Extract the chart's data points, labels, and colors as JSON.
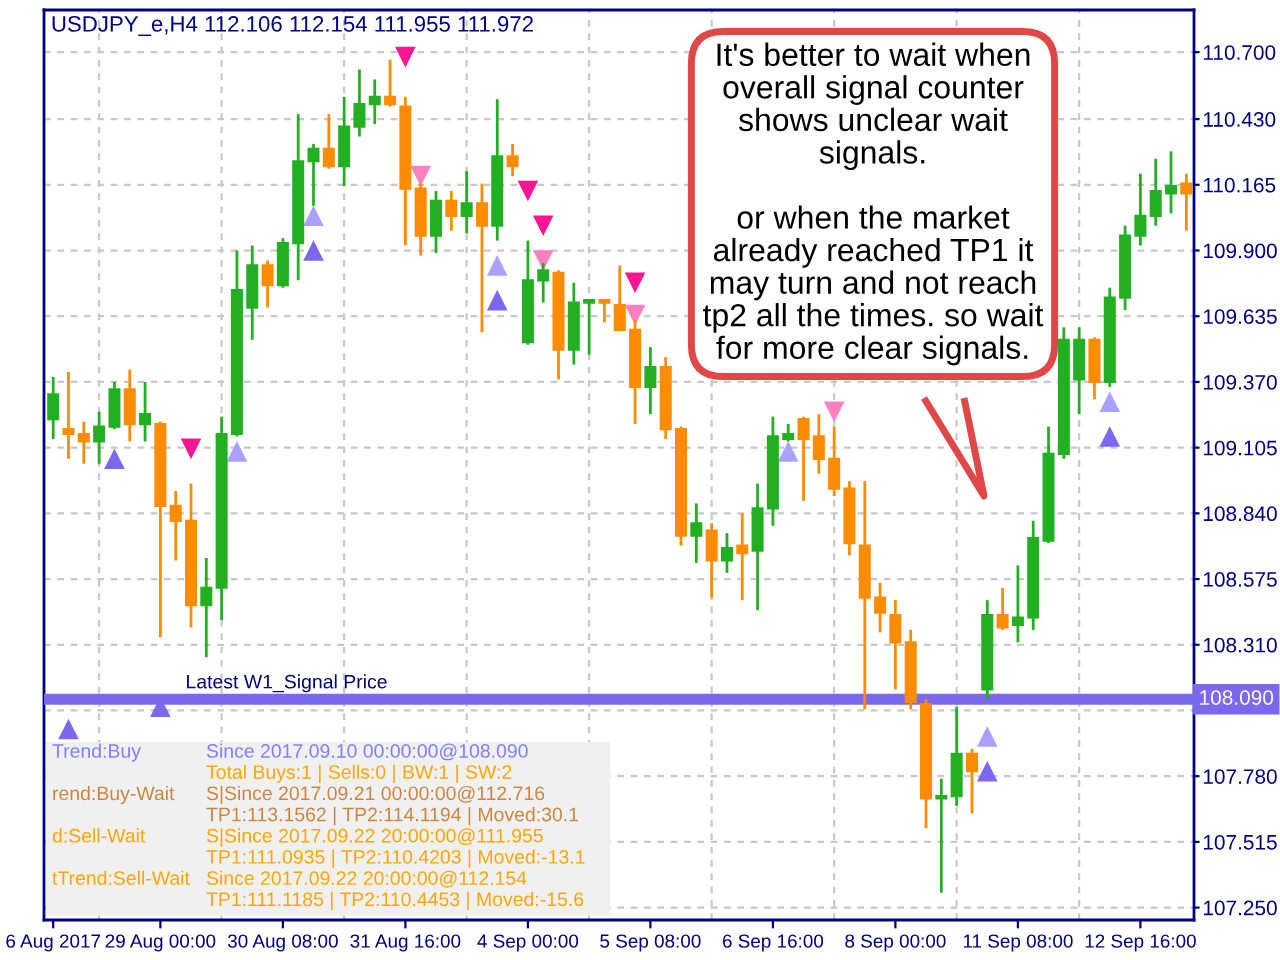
{
  "chart_data": {
    "type": "candlestick",
    "title": "USDJPY_e,H4 112.106 112.154 111.955 111.972",
    "categories": [
      "6 Aug 2017",
      null,
      null,
      null,
      null,
      null,
      null,
      "29 Aug 00:00",
      null,
      null,
      null,
      null,
      null,
      null,
      null,
      "30 Aug 08:00",
      null,
      null,
      null,
      null,
      null,
      null,
      null,
      "31 Aug 16:00",
      null,
      null,
      null,
      null,
      null,
      null,
      null,
      "4 Sep 00:00",
      null,
      null,
      null,
      null,
      null,
      null,
      null,
      "5 Sep 08:00",
      null,
      null,
      null,
      null,
      null,
      null,
      null,
      "6 Sep 16:00",
      null,
      null,
      null,
      null,
      null,
      null,
      null,
      "8 Sep 00:00",
      null,
      null,
      null,
      null,
      null,
      null,
      null,
      "11 Sep 08:00",
      null,
      null,
      null,
      null,
      null,
      null,
      null,
      "12 Sep 16:00",
      null,
      null,
      null
    ],
    "ohlc": [
      [
        109.22,
        109.39,
        109.14,
        109.32
      ],
      [
        109.18,
        109.41,
        109.06,
        109.16
      ],
      [
        109.16,
        109.21,
        109.04,
        109.13
      ],
      [
        109.13,
        109.25,
        109.04,
        109.19
      ],
      [
        109.19,
        109.37,
        109.18,
        109.34
      ],
      [
        109.34,
        109.42,
        109.13,
        109.2
      ],
      [
        109.2,
        109.37,
        109.13,
        109.24
      ],
      [
        109.2,
        109.21,
        108.34,
        108.87
      ],
      [
        108.87,
        108.93,
        108.65,
        108.81
      ],
      [
        108.81,
        108.96,
        108.38,
        108.47
      ],
      [
        108.47,
        108.66,
        108.26,
        108.54
      ],
      [
        108.54,
        109.23,
        108.41,
        109.16
      ],
      [
        109.16,
        109.9,
        109.15,
        109.74
      ],
      [
        109.67,
        109.92,
        109.54,
        109.84
      ],
      [
        109.84,
        109.86,
        109.67,
        109.76
      ],
      [
        109.76,
        109.95,
        109.75,
        109.93
      ],
      [
        109.93,
        110.45,
        109.78,
        110.26
      ],
      [
        110.26,
        110.33,
        110.08,
        110.31
      ],
      [
        110.31,
        110.45,
        110.23,
        110.24
      ],
      [
        110.24,
        110.52,
        110.16,
        110.4
      ],
      [
        110.4,
        110.63,
        110.36,
        110.49
      ],
      [
        110.49,
        110.59,
        110.41,
        110.52
      ],
      [
        110.52,
        110.67,
        110.48,
        110.49
      ],
      [
        110.48,
        110.52,
        109.92,
        110.15
      ],
      [
        110.15,
        110.17,
        109.88,
        109.96
      ],
      [
        109.96,
        110.14,
        109.89,
        110.1
      ],
      [
        110.1,
        110.14,
        109.98,
        110.04
      ],
      [
        110.04,
        110.22,
        109.97,
        110.09
      ],
      [
        110.09,
        110.17,
        109.57,
        110.0
      ],
      [
        110.0,
        110.51,
        109.94,
        110.28
      ],
      [
        110.28,
        110.33,
        110.2,
        110.24
      ],
      [
        109.53,
        109.94,
        109.52,
        109.78
      ],
      [
        109.78,
        109.85,
        109.69,
        109.82
      ],
      [
        109.81,
        109.82,
        109.38,
        109.5
      ],
      [
        109.5,
        109.77,
        109.44,
        109.69
      ],
      [
        109.69,
        109.7,
        109.48,
        109.7
      ],
      [
        109.7,
        109.7,
        109.61,
        109.69
      ],
      [
        109.68,
        109.84,
        109.58,
        109.58
      ],
      [
        109.58,
        109.62,
        109.2,
        109.35
      ],
      [
        109.35,
        109.51,
        109.24,
        109.43
      ],
      [
        109.43,
        109.47,
        109.14,
        109.18
      ],
      [
        109.18,
        109.19,
        108.71,
        108.75
      ],
      [
        108.75,
        108.88,
        108.64,
        108.8
      ],
      [
        108.77,
        108.8,
        108.5,
        108.65
      ],
      [
        108.65,
        108.76,
        108.6,
        108.7
      ],
      [
        108.71,
        108.84,
        108.49,
        108.68
      ],
      [
        108.69,
        108.96,
        108.45,
        108.86
      ],
      [
        108.86,
        109.23,
        108.79,
        109.15
      ],
      [
        109.14,
        109.2,
        109.13,
        109.16
      ],
      [
        109.22,
        109.23,
        108.89,
        109.14
      ],
      [
        109.15,
        109.24,
        109.0,
        109.06
      ],
      [
        109.06,
        109.19,
        108.91,
        108.94
      ],
      [
        108.94,
        108.97,
        108.67,
        108.72
      ],
      [
        108.71,
        108.97,
        108.05,
        108.5
      ],
      [
        108.5,
        108.56,
        108.36,
        108.44
      ],
      [
        108.43,
        108.49,
        108.13,
        108.32
      ],
      [
        108.32,
        108.37,
        108.05,
        108.08
      ],
      [
        108.07,
        108.09,
        107.57,
        107.69
      ],
      [
        107.69,
        107.77,
        107.31,
        107.7
      ],
      [
        107.7,
        108.06,
        107.66,
        107.87
      ],
      [
        107.87,
        107.89,
        107.63,
        107.8
      ],
      [
        108.13,
        108.49,
        108.09,
        108.43
      ],
      [
        108.43,
        108.54,
        108.37,
        108.38
      ],
      [
        108.39,
        108.63,
        108.32,
        108.42
      ],
      [
        108.42,
        108.81,
        108.37,
        108.74
      ],
      [
        108.73,
        109.19,
        108.72,
        109.08
      ],
      [
        109.08,
        109.59,
        109.06,
        109.54
      ],
      [
        109.38,
        109.59,
        109.24,
        109.54
      ],
      [
        109.54,
        109.55,
        109.3,
        109.37
      ],
      [
        109.37,
        109.75,
        109.35,
        109.71
      ],
      [
        109.71,
        110.0,
        109.66,
        109.96
      ],
      [
        109.96,
        110.21,
        109.92,
        110.04
      ],
      [
        110.04,
        110.27,
        110.0,
        110.14
      ],
      [
        110.13,
        110.3,
        110.05,
        110.16
      ],
      [
        110.17,
        110.21,
        109.98,
        110.13
      ]
    ],
    "colors": [
      "#22b022",
      "#ff8c00",
      "#ff8c00",
      "#22b022",
      "#22b022",
      "#ff8c00",
      "#22b022",
      "#ff8c00",
      "#ff8c00",
      "#ff8c00",
      "#22b022",
      "#22b022",
      "#22b022",
      "#22b022",
      "#ff8c00",
      "#22b022",
      "#22b022",
      "#22b022",
      "#ff8c00",
      "#22b022",
      "#22b022",
      "#22b022",
      "#ff8c00",
      "#ff8c00",
      "#ff8c00",
      "#22b022",
      "#ff8c00",
      "#22b022",
      "#ff8c00",
      "#22b022",
      "#ff8c00",
      "#22b022",
      "#22b022",
      "#ff8c00",
      "#22b022",
      "#22b022",
      "#ff8c00",
      "#ff8c00",
      "#ff8c00",
      "#22b022",
      "#ff8c00",
      "#ff8c00",
      "#22b022",
      "#ff8c00",
      "#22b022",
      "#ff8c00",
      "#22b022",
      "#22b022",
      "#22b022",
      "#ff8c00",
      "#ff8c00",
      "#ff8c00",
      "#ff8c00",
      "#ff8c00",
      "#ff8c00",
      "#ff8c00",
      "#ff8c00",
      "#ff8c00",
      "#22b022",
      "#22b022",
      "#ff8c00",
      "#22b022",
      "#ff8c00",
      "#22b022",
      "#22b022",
      "#22b022",
      "#22b022",
      "#22b022",
      "#ff8c00",
      "#22b022",
      "#22b022",
      "#22b022",
      "#22b022",
      "#22b022",
      "#ff8c00"
    ],
    "series": [
      {
        "type": "scatter",
        "color": "#ff1493",
        "marker": "triangle",
        "values": [
          null,
          null,
          null,
          null,
          null,
          null,
          null,
          null,
          null,
          109.1,
          null,
          null,
          null,
          null,
          null,
          null,
          null,
          null,
          null,
          null,
          null,
          null,
          null,
          110.68,
          null,
          null,
          null,
          null,
          null,
          null,
          null,
          110.14,
          110.0,
          null,
          null,
          null,
          null,
          null,
          109.77,
          null,
          null,
          null,
          null,
          null,
          null,
          null,
          null,
          null,
          null,
          null,
          null,
          null,
          null,
          null,
          null,
          null,
          null,
          null,
          null,
          null,
          null,
          null,
          null,
          null,
          null,
          null,
          null,
          null,
          null,
          null,
          null,
          null,
          null,
          null,
          null
        ]
      },
      {
        "type": "scatter",
        "color": "#ff80c0",
        "marker": "triangle",
        "values": [
          null,
          null,
          null,
          null,
          null,
          null,
          null,
          null,
          null,
          null,
          null,
          null,
          null,
          null,
          null,
          null,
          null,
          null,
          null,
          null,
          null,
          null,
          null,
          null,
          110.2,
          null,
          null,
          null,
          null,
          null,
          null,
          null,
          109.86,
          null,
          null,
          null,
          null,
          null,
          109.64,
          null,
          null,
          null,
          null,
          null,
          null,
          null,
          null,
          null,
          null,
          null,
          null,
          109.25,
          null,
          null,
          null,
          null,
          null,
          null,
          null,
          null,
          null,
          null,
          null,
          null,
          null,
          null,
          null,
          null,
          null,
          null,
          null,
          null,
          null,
          null,
          null
        ]
      },
      {
        "type": "scatter",
        "color": "#7b68ee",
        "marker": "triangle",
        "values": [
          null,
          107.97,
          null,
          null,
          109.06,
          null,
          null,
          108.06,
          null,
          null,
          null,
          null,
          null,
          null,
          null,
          null,
          null,
          109.9,
          null,
          null,
          null,
          null,
          null,
          null,
          null,
          null,
          null,
          null,
          null,
          109.7,
          null,
          null,
          null,
          null,
          null,
          null,
          null,
          null,
          null,
          null,
          null,
          null,
          null,
          null,
          null,
          null,
          null,
          null,
          null,
          null,
          null,
          null,
          null,
          null,
          null,
          null,
          null,
          null,
          null,
          null,
          null,
          107.8,
          null,
          null,
          null,
          null,
          null,
          null,
          null,
          109.15,
          null,
          null,
          null,
          null,
          null
        ]
      },
      {
        "type": "scatter",
        "color": "#a9a0ff",
        "marker": "triangle",
        "values": [
          null,
          null,
          null,
          null,
          null,
          null,
          null,
          null,
          null,
          null,
          null,
          null,
          109.09,
          null,
          null,
          null,
          null,
          110.04,
          null,
          null,
          null,
          null,
          null,
          null,
          null,
          null,
          null,
          null,
          null,
          109.84,
          null,
          null,
          null,
          null,
          null,
          null,
          null,
          null,
          null,
          null,
          null,
          null,
          null,
          null,
          null,
          null,
          null,
          null,
          109.09,
          null,
          null,
          null,
          null,
          null,
          null,
          null,
          null,
          null,
          null,
          null,
          null,
          107.94,
          null,
          null,
          null,
          null,
          null,
          null,
          null,
          109.29,
          null,
          null,
          null,
          null,
          null
        ]
      }
    ],
    "ylim": [
      107.2,
      110.87
    ],
    "yticks": [
      {
        "value": 107.25,
        "label": "107.250"
      },
      107.515,
      {
        "value": 107.78,
        "label": "107.780"
      },
      {
        "value": 108.045,
        "label": null
      },
      {
        "value": 108.31,
        "label": "108.310"
      },
      108.575,
      {
        "value": 108.84,
        "label": "108.840"
      },
      109.105,
      {
        "value": 109.37,
        "label": "109.370"
      },
      109.635,
      {
        "value": 109.9,
        "label": "109.900"
      },
      110.165,
      {
        "value": 110.43,
        "label": "110.430"
      },
      {
        "value": 110.7,
        "label": "110.700"
      }
    ],
    "grid": true,
    "ref_lines": [
      {
        "axis": "y",
        "value": 108.09,
        "label": "Latest W1_Signal Price",
        "color": "#7b68ee"
      }
    ],
    "annotations": [
      "It's better to wait when\noverall signal counter\nshows unclear wait\nsignals.\n\nor when the market\nalready reached TP1 it\nmay turn and not reach\ntp2 all the times. so wait\nfor more clear signals.",
      "Trend:Buy",
      "Since 2017.09.10 00:00:00@108.090",
      "Total Buys:1 | Sells:0 | BW:1 | SW:2",
      "rend:Buy-Wait",
      "S|Since 2017.09.21 00:00:00@112.716",
      "TP1:113.1562 | TP2:114.1194 | Moved:30.1",
      "d:Sell-Wait",
      "S|Since 2017.09.22 20:00:00@111.955",
      "TP1:111.0935 | TP2:110.4203 | Moved:-13.1",
      "tTrend:Sell-Wait",
      "Since 2017.09.22 20:00:00@112.154",
      "TP1:111.1185 | TP2:110.4453 | Moved:-15.6",
      {
        "text": "108.090",
        "y": 108.09
      }
    ]
  }
}
